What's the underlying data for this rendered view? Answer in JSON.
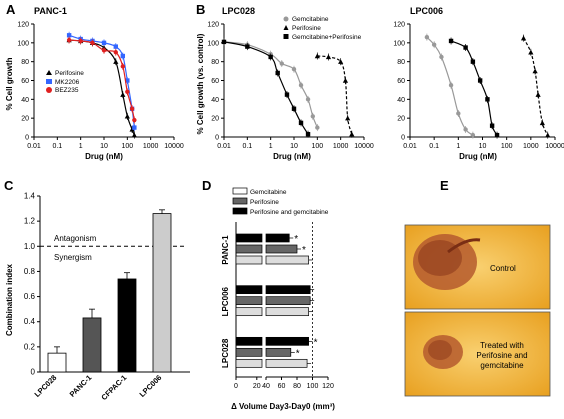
{
  "panels": {
    "A": {
      "letter": "A",
      "title": "PANC-1",
      "xlabel": "Drug (nM)",
      "ylabel": "% Cell growth",
      "xticks": [
        "0.01",
        "0.1",
        "1",
        "10",
        "100",
        "1000",
        "10000"
      ],
      "yticks": [
        "0",
        "20",
        "40",
        "60",
        "80",
        "100",
        "120"
      ],
      "legend": [
        "Perifosine",
        "MK2206",
        "BEZ235"
      ]
    },
    "B1": {
      "letter": "B",
      "title": "LPC028",
      "xlabel": "Drug (nM)",
      "ylabel": "% Cell growth (vs. control)",
      "xticks": [
        "0.01",
        "0.1",
        "1",
        "10",
        "100",
        "1000",
        "10000"
      ],
      "yticks": [
        "0",
        "20",
        "40",
        "60",
        "80",
        "100",
        "120"
      ],
      "legend": [
        "Gemcitabine",
        "Perifosine",
        "Gemcitabine+Perifosine"
      ]
    },
    "B2": {
      "title": "LPC006",
      "xlabel": "Drug (nM)",
      "xticks": [
        "0.01",
        "0.1",
        "1",
        "10",
        "100",
        "1000",
        "10000"
      ],
      "yticks": [
        "0",
        "20",
        "40",
        "60",
        "80",
        "100",
        "120"
      ]
    },
    "C": {
      "letter": "C",
      "ylabel": "Combination index",
      "yticks": [
        "0",
        "0.2",
        "0.4",
        "0.6",
        "0.8",
        "1.0",
        "1.2",
        "1.4"
      ],
      "antagonism": "Antagonism",
      "synergism": "Synergism"
    },
    "D": {
      "letter": "D",
      "xlabel": "Δ Volume Day3-Day0 (mm³)",
      "xticks": [
        "0",
        "20",
        "40",
        "60",
        "80",
        "100",
        "120"
      ],
      "legend": [
        "Gemcitabine",
        "Perifosine",
        "Perifosine and gemcitabine"
      ],
      "groups": [
        "PANC-1",
        "LPC006",
        "LPC028"
      ],
      "star": "*"
    },
    "E": {
      "letter": "E",
      "label_control": "Control",
      "label_treated_1": "Treated with",
      "label_treated_2": "Perifosine and",
      "label_treated_3": "gemcitabine"
    }
  },
  "colors": {
    "black": "#000000",
    "gray": "#999999",
    "lightgray": "#cccccc",
    "darkgray": "#555555",
    "mk2206": "#3366ff",
    "bez235": "#e02020",
    "photo_bg": "#f3b233",
    "photo_organoid": "#b0502a"
  },
  "chart_data": [
    {
      "id": "A",
      "type": "line",
      "title": "PANC-1",
      "xlabel": "Drug (nM)",
      "ylabel": "% Cell growth",
      "xscale": "log",
      "xlim": [
        0.01,
        10000
      ],
      "ylim": [
        0,
        120
      ],
      "legend_position": "bottom-left",
      "series": [
        {
          "name": "Perifosine",
          "color": "#000000",
          "marker": "triangle",
          "x": [
            0.32,
            1,
            3.2,
            10,
            32,
            64,
            100,
            160,
            200
          ],
          "y": [
            103,
            102,
            100,
            95,
            80,
            45,
            22,
            8,
            2
          ]
        },
        {
          "name": "MK2206",
          "color": "#3366ff",
          "marker": "square",
          "x": [
            0.32,
            1,
            3.2,
            10,
            32,
            64,
            100,
            160,
            200
          ],
          "y": [
            108,
            104,
            102,
            100,
            96,
            86,
            60,
            30,
            10
          ]
        },
        {
          "name": "BEZ235",
          "color": "#e02020",
          "marker": "circle",
          "x": [
            0.32,
            1,
            3.2,
            10,
            32,
            64,
            100,
            160,
            200
          ],
          "y": [
            103,
            102,
            100,
            92,
            90,
            75,
            48,
            30,
            18
          ]
        }
      ]
    },
    {
      "id": "B-LPC028",
      "type": "line",
      "title": "LPC028",
      "xlabel": "Drug (nM)",
      "ylabel": "% Cell growth (vs. control)",
      "xscale": "log",
      "xlim": [
        0.01,
        10000
      ],
      "ylim": [
        0,
        120
      ],
      "legend_position": "top-right",
      "series": [
        {
          "name": "Gemcitabine",
          "color": "#999999",
          "marker": "circle",
          "x": [
            0.01,
            0.1,
            1,
            3,
            10,
            20,
            40,
            64,
            100
          ],
          "y": [
            101,
            98,
            88,
            78,
            72,
            55,
            40,
            22,
            10
          ]
        },
        {
          "name": "Perifosine",
          "color": "#000000",
          "marker": "triangle",
          "dashed": true,
          "x": [
            100,
            300,
            1000,
            1600,
            2000,
            3000
          ],
          "y": [
            86,
            85,
            80,
            60,
            20,
            3
          ]
        },
        {
          "name": "Gemcitabine+Perifosine",
          "color": "#000000",
          "marker": "square",
          "x": [
            0.01,
            0.1,
            1,
            2,
            5,
            10,
            20,
            40
          ],
          "y": [
            101,
            96,
            85,
            68,
            45,
            30,
            15,
            3
          ]
        }
      ]
    },
    {
      "id": "B-LPC006",
      "type": "line",
      "title": "LPC006",
      "xlabel": "Drug (nM)",
      "xscale": "log",
      "xlim": [
        0.01,
        10000
      ],
      "ylim": [
        0,
        120
      ],
      "series": [
        {
          "name": "Gemcitabine",
          "color": "#999999",
          "marker": "circle",
          "x": [
            0.05,
            0.1,
            0.2,
            0.5,
            1,
            2,
            4
          ],
          "y": [
            106,
            98,
            85,
            55,
            25,
            8,
            2
          ]
        },
        {
          "name": "Perifosine",
          "color": "#000000",
          "marker": "triangle",
          "dashed": true,
          "x": [
            500,
            1000,
            1500,
            2000,
            3000,
            5000
          ],
          "y": [
            105,
            90,
            70,
            45,
            15,
            2
          ]
        },
        {
          "name": "Gemcitabine+Perifosine",
          "color": "#000000",
          "marker": "square",
          "x": [
            0.5,
            2,
            4,
            8,
            16,
            25,
            40
          ],
          "y": [
            102,
            95,
            80,
            60,
            40,
            12,
            2
          ]
        }
      ]
    },
    {
      "id": "C",
      "type": "bar",
      "ylabel": "Combination index",
      "ylim": [
        0,
        1.4
      ],
      "categories": [
        "LPC028",
        "PANC-1",
        "CFPAC-1",
        "LPC006"
      ],
      "values": [
        0.15,
        0.43,
        0.74,
        1.26
      ],
      "errors": [
        0.05,
        0.07,
        0.05,
        0.03
      ],
      "bar_colors": [
        "#ffffff",
        "#555555",
        "#000000",
        "#cccccc"
      ],
      "reference_line": 1.0
    },
    {
      "id": "D",
      "type": "bar",
      "orientation": "horizontal",
      "xlabel": "Δ Volume Day3-Day0 (mm³)",
      "xlim": [
        0,
        120
      ],
      "axis_break": [
        25,
        40
      ],
      "categories": [
        "PANC-1",
        "LPC006",
        "LPC028"
      ],
      "series": [
        {
          "name": "Gemcitabine",
          "color": "#000000",
          "values": [
            70,
            97,
            95
          ]
        },
        {
          "name": "Perifosine",
          "color": "#666666",
          "values": [
            80,
            97,
            72
          ]
        },
        {
          "name": "Perifosine and gemcitabine",
          "color": "#dddddd",
          "values": [
            95,
            95,
            93
          ]
        }
      ],
      "significance": {
        "PANC-1": [
          true,
          true,
          false
        ],
        "LPC006": [
          false,
          false,
          false
        ],
        "LPC028": [
          true,
          true,
          false
        ]
      },
      "reference_line": 100
    }
  ]
}
